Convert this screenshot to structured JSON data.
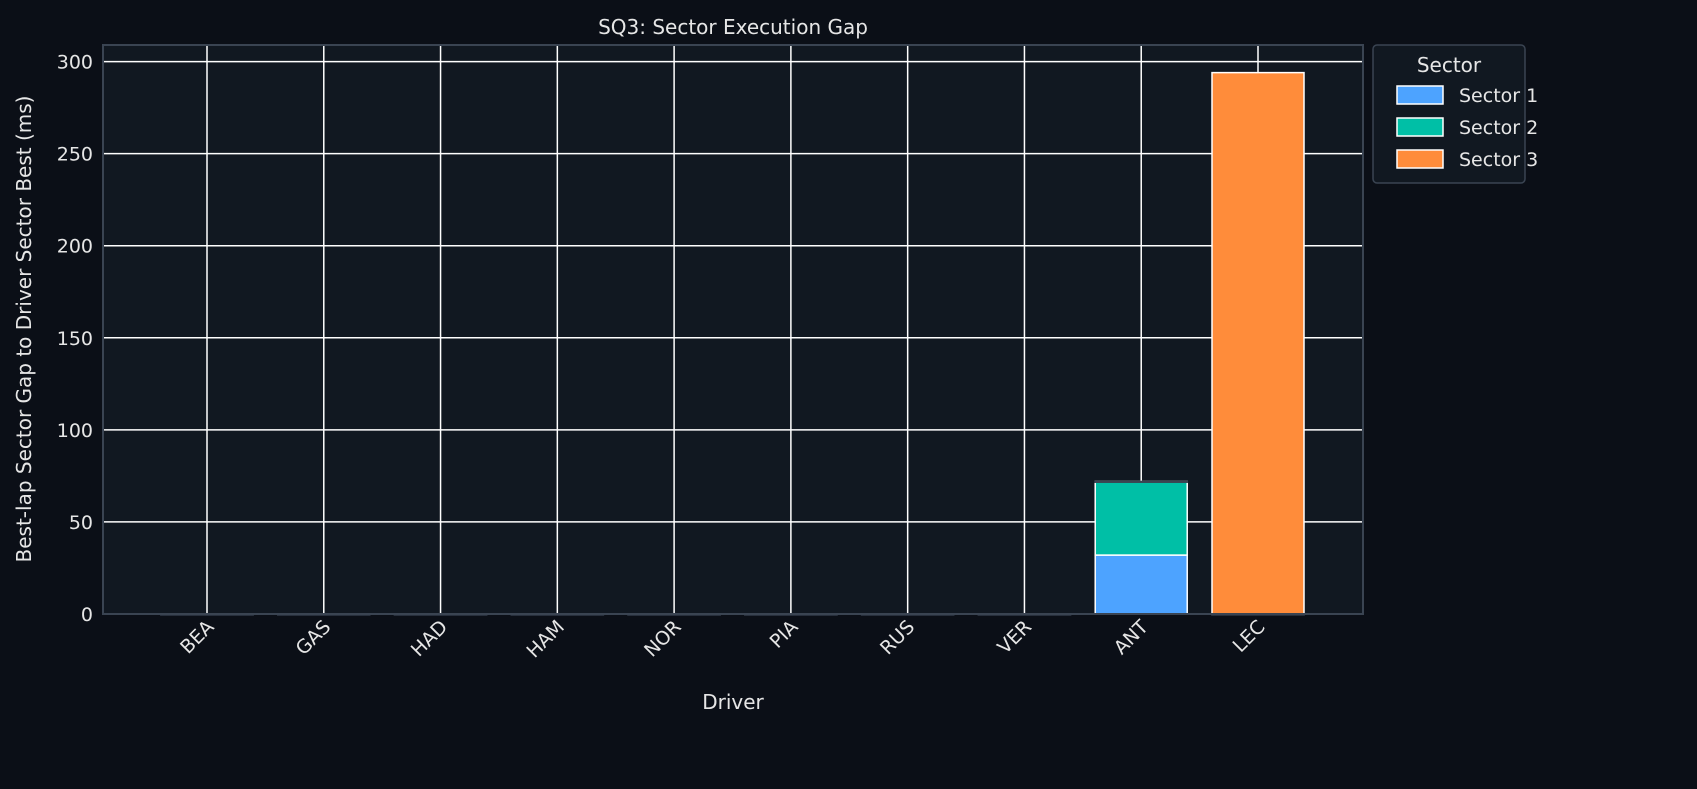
{
  "chart_data": {
    "type": "bar",
    "stacked": true,
    "title": "SQ3: Sector Execution Gap",
    "xlabel": "Driver",
    "ylabel": "Best-lap Sector Gap to Driver Sector Best (ms)",
    "categories": [
      "BEA",
      "GAS",
      "HAD",
      "HAM",
      "NOR",
      "PIA",
      "RUS",
      "VER",
      "ANT",
      "LEC"
    ],
    "ylim": [
      0,
      309
    ],
    "yticks": [
      0,
      50,
      100,
      150,
      200,
      250,
      300
    ],
    "grid": true,
    "legend": {
      "title": "Sector",
      "placement": "outside-top-right"
    },
    "series": [
      {
        "name": "Sector 1",
        "color": "#4da3ff",
        "values": [
          0,
          0,
          0,
          0,
          0,
          0,
          0,
          0,
          32,
          0
        ]
      },
      {
        "name": "Sector 2",
        "color": "#00bfa6",
        "values": [
          0,
          0,
          0,
          0,
          0,
          0,
          0,
          0,
          40,
          0
        ]
      },
      {
        "name": "Sector 3",
        "color": "#ff8c3a",
        "values": [
          0,
          0,
          0,
          0,
          0,
          0,
          0,
          0,
          0,
          294
        ]
      }
    ],
    "colors": {
      "page_background": "#0b0f17",
      "plot_background": "#111821",
      "axis_frame": "#3a4452",
      "grid": "#ffffff",
      "text": "#e6e6e6",
      "bar_edge": "#ffffff"
    }
  }
}
